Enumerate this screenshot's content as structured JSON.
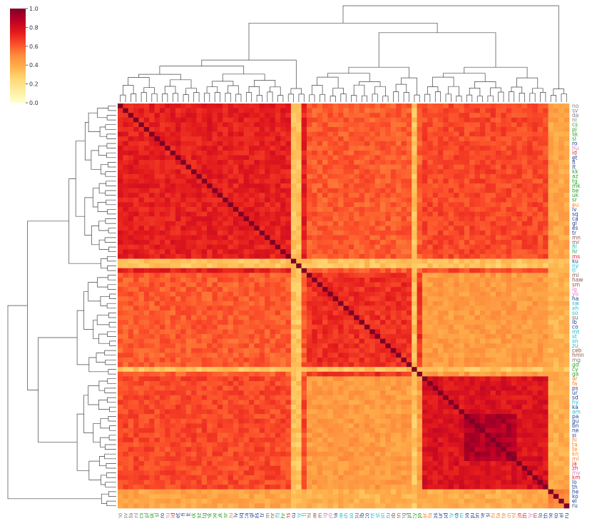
{
  "chart_data": {
    "type": "heatmap",
    "title": "",
    "xlabel": "",
    "ylabel": "",
    "clustered": true,
    "dendrograms": [
      "top",
      "left"
    ],
    "colormap": [
      "#ffffcc",
      "#ffeda0",
      "#fed976",
      "#feb24c",
      "#fd8d3c",
      "#fc4e2a",
      "#e31a1c",
      "#bd0026",
      "#800026"
    ],
    "colorbar": {
      "min": 0.0,
      "max": 1.0,
      "ticks": [
        "0.0",
        "0.2",
        "0.4",
        "0.6",
        "0.8",
        "1.0"
      ]
    },
    "labels": [
      "no",
      "sv",
      "da",
      "nl",
      "cs",
      "pl",
      "sk",
      "sl",
      "ro",
      "hu",
      "id",
      "et",
      "fi",
      "lt",
      "kk",
      "az",
      "tg",
      "mk",
      "be",
      "uk",
      "sr",
      "eu",
      "lv",
      "sq",
      "ca",
      "gl",
      "es",
      "tr",
      "mn",
      "mr",
      "fil",
      "hr",
      "ms",
      "ku",
      "ny",
      "tl",
      "mi",
      "haw",
      "sm",
      "ig",
      "yo",
      "ha",
      "sw",
      "xh",
      "so",
      "su",
      "lb",
      "co",
      "mt",
      "st",
      "sn",
      "zu",
      "ceb",
      "hmn",
      "mg",
      "gd",
      "cy",
      "ga",
      "ar",
      "fa",
      "ps",
      "ur",
      "sd",
      "hy",
      "ka",
      "am",
      "pa",
      "gu",
      "bn",
      "ne",
      "si",
      "hi",
      "ta",
      "te",
      "kn",
      "ml",
      "ja",
      "zh",
      "my",
      "km",
      "lo",
      "th",
      "he",
      "ko",
      "el",
      "ru"
    ],
    "label_colors": [
      "#7f7f7f",
      "#7f7f7f",
      "#7f7f7f",
      "#7f7f7f",
      "#2ca02c",
      "#2ca02c",
      "#2ca02c",
      "#2ca02c",
      "#1f3f8f",
      "#e377c2",
      "#d62728",
      "#1f3f8f",
      "#1f3f8f",
      "#1f3f8f",
      "#2ca02c",
      "#2ca02c",
      "#2ca02c",
      "#2ca02c",
      "#2ca02c",
      "#2ca02c",
      "#2ca02c",
      "#ff7f0e",
      "#1f3f8f",
      "#1f3f8f",
      "#1f3f8f",
      "#1f3f8f",
      "#1f3f8f",
      "#1f3f8f",
      "#8c564b",
      "#8c564b",
      "#17becf",
      "#2ca02c",
      "#d62728",
      "#1f3f8f",
      "#17becf",
      "#17becf",
      "#8c564b",
      "#8c564b",
      "#8c564b",
      "#e377c2",
      "#e377c2",
      "#1f3f8f",
      "#17becf",
      "#17becf",
      "#17becf",
      "#8c564b",
      "#1f3f8f",
      "#1f3f8f",
      "#17becf",
      "#17becf",
      "#17becf",
      "#17becf",
      "#8c564b",
      "#8c564b",
      "#7f7f7f",
      "#2ca02c",
      "#2ca02c",
      "#2ca02c",
      "#ff7f0e",
      "#ff7f0e",
      "#1f3f8f",
      "#1f3f8f",
      "#1f3f8f",
      "#17becf",
      "#1f3f8f",
      "#17becf",
      "#1f3f8f",
      "#1f3f8f",
      "#1f3f8f",
      "#1f3f8f",
      "#1f3f8f",
      "#ff7f0e",
      "#ff7f0e",
      "#ff7f0e",
      "#ff7f0e",
      "#ff7f0e",
      "#d62728",
      "#d62728",
      "#e377c2",
      "#d62728",
      "#1f3f8f",
      "#1f3f8f",
      "#1f3f8f",
      "#1f3f8f",
      "#1f3f8f",
      "#1f3f8f"
    ],
    "clusters": [
      {
        "start": 0,
        "end": 35,
        "within": 0.74,
        "name": ""
      },
      {
        "start": 36,
        "end": 57,
        "within": 0.7,
        "name": ""
      },
      {
        "start": 58,
        "end": 81,
        "within": 0.78,
        "name": ""
      },
      {
        "start": 82,
        "end": 85,
        "within": 0.5,
        "name": ""
      }
    ],
    "dense_block": {
      "start": 66,
      "end": 75,
      "value": 0.9
    },
    "between": [
      [
        0.74,
        0.6,
        0.64,
        0.42
      ],
      [
        0.6,
        0.7,
        0.45,
        0.38
      ],
      [
        0.64,
        0.45,
        0.78,
        0.4
      ],
      [
        0.42,
        0.38,
        0.4,
        0.5
      ]
    ],
    "pale_bands": [
      33,
      34,
      56
    ],
    "pale_band_value": 0.32,
    "diagonal": 1.0
  }
}
